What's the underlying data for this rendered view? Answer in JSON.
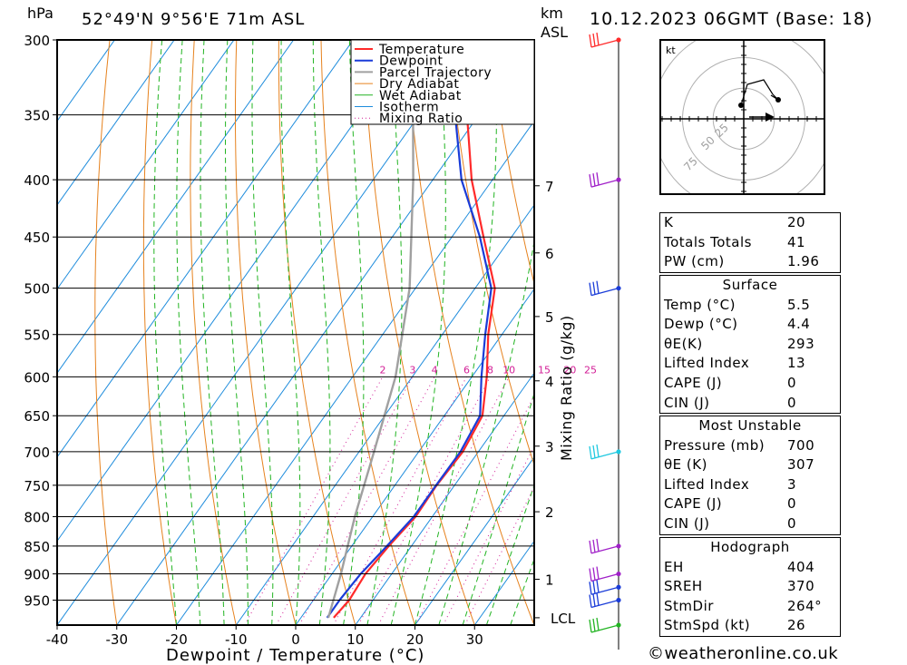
{
  "header": {
    "pressure_unit": "hPa",
    "location": "52°49'N  9°56'E  71m  ASL",
    "km_unit": "km",
    "asl_label": "ASL",
    "datetime": "10.12.2023  06GMT  (Base: 18)"
  },
  "chart_data": {
    "type": "line",
    "title": "52°49'N  9°56'E  71m  ASL",
    "xlabel": "Dewpoint / Temperature (°C)",
    "ylabel": "hPa",
    "y_scale": "log-pressure (inverted)",
    "xlim": [
      -40,
      40
    ],
    "ylim": [
      1000,
      300
    ],
    "x_ticks": [
      -40,
      -30,
      -20,
      -10,
      0,
      10,
      20,
      30
    ],
    "pressure_ticks": [
      300,
      350,
      400,
      450,
      500,
      550,
      600,
      650,
      700,
      750,
      800,
      850,
      900,
      950
    ],
    "km_ticks": [
      {
        "km": "1",
        "p": 910
      },
      {
        "km": "2",
        "p": 792
      },
      {
        "km": "3",
        "p": 692
      },
      {
        "km": "4",
        "p": 605
      },
      {
        "km": "5",
        "p": 530
      },
      {
        "km": "6",
        "p": 465
      },
      {
        "km": "7",
        "p": 405
      }
    ],
    "lcl": {
      "label": "LCL",
      "p": 985
    },
    "mixing_ratio_axis_label": "Mixing Ratio (g/kg)",
    "mixing_ratio_labels": [
      "2",
      "3",
      "4",
      "6",
      "8",
      "10",
      "15",
      "20",
      "25"
    ],
    "legend": [
      "Temperature",
      "Dewpoint",
      "Parcel Trajectory",
      "Dry Adiabat",
      "Wet Adiabat",
      "Isotherm",
      "Mixing Ratio"
    ],
    "legend_placement": "top-right",
    "colors": {
      "temperature": "#ff2a2a",
      "dewpoint": "#1a3cd8",
      "parcel": "#a0a0a0",
      "dry_adiabat": "#e6821e",
      "wet_adiabat": "#22b422",
      "isotherm": "#1e8cdc",
      "mixing_ratio": "#d21e96"
    },
    "series": [
      {
        "name": "Temperature",
        "points": [
          {
            "p": 985,
            "t": 5.5
          },
          {
            "p": 950,
            "t": 6.0
          },
          {
            "p": 900,
            "t": 5.6
          },
          {
            "p": 850,
            "t": 6.2
          },
          {
            "p": 800,
            "t": 7.2
          },
          {
            "p": 750,
            "t": 7.0
          },
          {
            "p": 700,
            "t": 7.4
          },
          {
            "p": 650,
            "t": 6.4
          },
          {
            "p": 600,
            "t": 2.5
          },
          {
            "p": 550,
            "t": -2.3
          },
          {
            "p": 500,
            "t": -6.7
          },
          {
            "p": 450,
            "t": -14.7
          },
          {
            "p": 400,
            "t": -23.5
          },
          {
            "p": 350,
            "t": -32.0
          },
          {
            "p": 300,
            "t": -41.6
          }
        ]
      },
      {
        "name": "Dewpoint",
        "points": [
          {
            "p": 985,
            "t": 4.4
          },
          {
            "p": 950,
            "t": 4.4
          },
          {
            "p": 900,
            "t": 4.8
          },
          {
            "p": 850,
            "t": 5.9
          },
          {
            "p": 800,
            "t": 6.9
          },
          {
            "p": 750,
            "t": 6.9
          },
          {
            "p": 700,
            "t": 7.0
          },
          {
            "p": 650,
            "t": 6.0
          },
          {
            "p": 600,
            "t": 1.6
          },
          {
            "p": 550,
            "t": -2.8
          },
          {
            "p": 500,
            "t": -7.3
          },
          {
            "p": 450,
            "t": -15.3
          },
          {
            "p": 400,
            "t": -25.2
          },
          {
            "p": 350,
            "t": -34.0
          },
          {
            "p": 300,
            "t": -43.0
          }
        ]
      },
      {
        "name": "Parcel Trajectory",
        "points": [
          {
            "p": 985,
            "t": 4.6
          },
          {
            "p": 900,
            "t": 1.5
          },
          {
            "p": 800,
            "t": -3.0
          },
          {
            "p": 700,
            "t": -7.5
          },
          {
            "p": 600,
            "t": -12.8
          },
          {
            "p": 500,
            "t": -21.0
          },
          {
            "p": 400,
            "t": -33.3
          },
          {
            "p": 300,
            "t": -50.0
          }
        ]
      }
    ],
    "wind_barbs_p": [
      300,
      400,
      500,
      700,
      850,
      900,
      925,
      950,
      1000
    ]
  },
  "hodograph": {
    "unit_label": "kt",
    "ring_labels": [
      "25",
      "50",
      "75"
    ]
  },
  "indices": {
    "rows": [
      {
        "label": "K",
        "value": "20"
      },
      {
        "label": "Totals Totals",
        "value": "41"
      },
      {
        "label": "PW (cm)",
        "value": "1.96"
      }
    ]
  },
  "surface": {
    "title": "Surface",
    "rows": [
      {
        "label": "Temp (°C)",
        "value": "5.5"
      },
      {
        "label": "Dewp (°C)",
        "value": "4.4"
      },
      {
        "label": "θE(K)",
        "value": "293"
      },
      {
        "label": "Lifted Index",
        "value": "13"
      },
      {
        "label": "CAPE (J)",
        "value": "0"
      },
      {
        "label": "CIN (J)",
        "value": "0"
      }
    ]
  },
  "most_unstable": {
    "title": "Most Unstable",
    "rows": [
      {
        "label": "Pressure (mb)",
        "value": "700"
      },
      {
        "label": "θE (K)",
        "value": "307"
      },
      {
        "label": "Lifted Index",
        "value": "3"
      },
      {
        "label": "CAPE (J)",
        "value": "0"
      },
      {
        "label": "CIN (J)",
        "value": "0"
      }
    ]
  },
  "hodograph_params": {
    "title": "Hodograph",
    "rows": [
      {
        "label": "EH",
        "value": "404"
      },
      {
        "label": "SREH",
        "value": "370"
      },
      {
        "label": "StmDir",
        "value": "264°"
      },
      {
        "label": "StmSpd (kt)",
        "value": "26"
      }
    ]
  },
  "footer": {
    "copyright": "©weatheronline.co.uk"
  }
}
